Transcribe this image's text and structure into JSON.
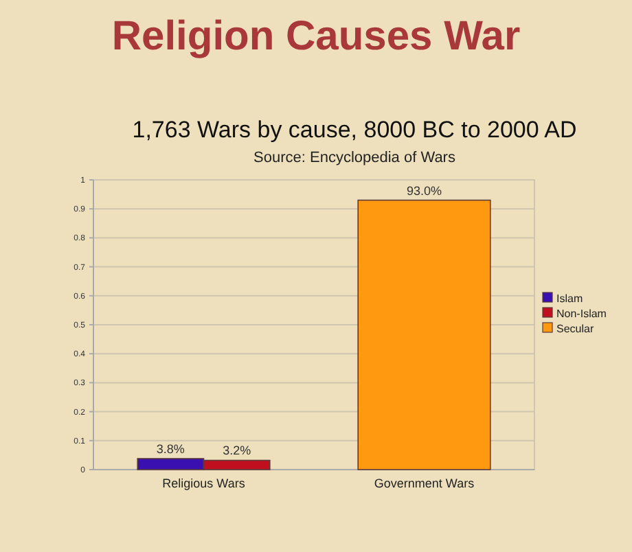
{
  "chart_data": {
    "type": "bar",
    "title": "Religion Causes War",
    "subtitle": "1,763 Wars by cause, 8000 BC to 2000 AD",
    "annotations": [
      "Source: Encyclopedia of Wars"
    ],
    "categories": [
      "Religious Wars",
      "Government Wars"
    ],
    "series": [
      {
        "name": "Islam",
        "color": "#3a10b0",
        "values": [
          0.038,
          null
        ],
        "value_labels": [
          "3.8%",
          null
        ]
      },
      {
        "name": "Non-Islam",
        "color": "#c01020",
        "values": [
          0.032,
          null
        ],
        "value_labels": [
          "3.2%",
          null
        ]
      },
      {
        "name": "Secular",
        "color": "#ff9a10",
        "values": [
          null,
          0.93
        ],
        "value_labels": [
          null,
          "93.0%"
        ]
      }
    ],
    "ylim": [
      0,
      1
    ],
    "yticks": [
      0,
      0.1,
      0.2,
      0.3,
      0.4,
      0.5,
      0.6,
      0.7,
      0.8,
      0.9,
      1
    ],
    "grid": "y",
    "legend": "right"
  }
}
